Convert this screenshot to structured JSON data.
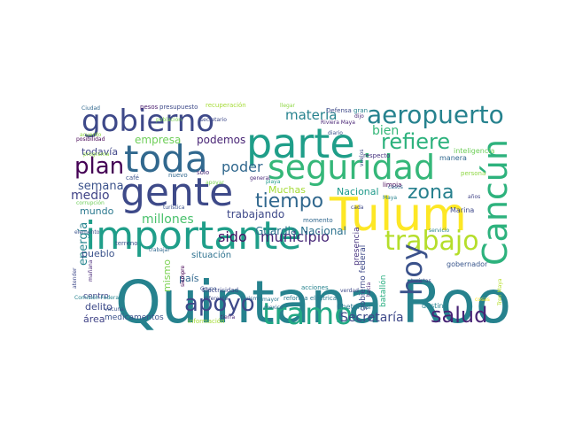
{
  "cloud": {
    "words": [
      {
        "text": "Quintana Roo",
        "color": "#26828e"
      },
      {
        "text": "gente",
        "color": "#3e4a89"
      },
      {
        "text": "importante",
        "color": "#1f9e89"
      },
      {
        "text": "Tulum",
        "color": "#fde725"
      },
      {
        "text": "toda",
        "color": "#31688e"
      },
      {
        "text": "parte",
        "color": "#1f9e89"
      },
      {
        "text": "gobierno",
        "color": "#3e4989"
      },
      {
        "text": "seguridad",
        "color": "#35b779"
      },
      {
        "text": "Cancún",
        "color": "#2db27d"
      },
      {
        "text": "aeropuerto",
        "color": "#26828e"
      },
      {
        "text": "tramo",
        "color": "#22a884"
      },
      {
        "text": "trabajo",
        "color": "#b5de2b"
      },
      {
        "text": "hoy",
        "color": "#3b528b"
      },
      {
        "text": "apoyo",
        "color": "#3e4989"
      },
      {
        "text": "salud",
        "color": "#482475"
      },
      {
        "text": "plan",
        "color": "#440154"
      },
      {
        "text": "tiempo",
        "color": "#31688e"
      },
      {
        "text": "refiere",
        "color": "#2db27d"
      },
      {
        "text": "zona",
        "color": "#27808e"
      },
      {
        "text": "municipio",
        "color": "#482878"
      },
      {
        "text": "Secretaría",
        "color": "#3e4989"
      },
      {
        "text": "sido",
        "color": "#471164"
      },
      {
        "text": "poder",
        "color": "#31688e"
      },
      {
        "text": "materia",
        "color": "#26828e"
      },
      {
        "text": "bien",
        "color": "#35b779"
      },
      {
        "text": "semana",
        "color": "#3b528b"
      },
      {
        "text": "millones",
        "color": "#4ac16d"
      },
      {
        "text": "energía",
        "color": "#25858e"
      },
      {
        "text": "medio",
        "color": "#414487"
      },
      {
        "text": "Guardia Nacional",
        "color": "#2c728e"
      },
      {
        "text": "trabajando",
        "color": "#3e4989"
      },
      {
        "text": "empresa",
        "color": "#6ece58"
      },
      {
        "text": "podemos",
        "color": "#482475"
      },
      {
        "text": "todavía",
        "color": "#404688"
      },
      {
        "text": "mundo",
        "color": "#2a788e"
      },
      {
        "text": "Nacional",
        "color": "#1f9a8a"
      },
      {
        "text": "Muchas",
        "color": "#a5db36"
      },
      {
        "text": "pueblo",
        "color": "#3b528b"
      },
      {
        "text": "situación",
        "color": "#2c718e"
      },
      {
        "text": "delito",
        "color": "#3e4a89"
      },
      {
        "text": "área",
        "color": "#414487"
      },
      {
        "text": "mismo",
        "color": "#7ad151"
      },
      {
        "text": "país",
        "color": "#31688e"
      },
      {
        "text": "centro",
        "color": "#414487"
      },
      {
        "text": "medicamentos",
        "color": "#3b528b"
      },
      {
        "text": "presencia",
        "color": "#46327e"
      },
      {
        "text": "batallón",
        "color": "#28ae80"
      },
      {
        "text": "gobierno federal",
        "color": "#3e4989"
      },
      {
        "text": "Chetumal",
        "color": "#2a788e"
      },
      {
        "text": "destino",
        "color": "#26828e"
      },
      {
        "text": "Marina",
        "color": "#3e4989"
      },
      {
        "text": "gobernador",
        "color": "#39568c"
      },
      {
        "text": "inteligencia",
        "color": "#6ece58"
      },
      {
        "text": "manera",
        "color": "#31688e"
      },
      {
        "text": "persona",
        "color": "#8fd744"
      },
      {
        "text": "respecto",
        "color": "#46337f"
      },
      {
        "text": "limpia",
        "color": "#440154"
      },
      {
        "text": "Defensa",
        "color": "#3e4989"
      },
      {
        "text": "gran",
        "color": "#26828e"
      },
      {
        "text": "nuevo",
        "color": "#31688e"
      },
      {
        "text": "café",
        "color": "#3b528b"
      },
      {
        "text": "sólo",
        "color": "#482878"
      },
      {
        "text": "presupuesto",
        "color": "#3e4a89"
      },
      {
        "text": "pesos",
        "color": "#481a6c"
      },
      {
        "text": "Electricidad",
        "color": "#3e4989"
      },
      {
        "text": "terreno",
        "color": "#3b528b"
      },
      {
        "text": "momento",
        "color": "#31688e"
      },
      {
        "text": "reforma eléctrica",
        "color": "#2a788e"
      },
      {
        "text": "acciones",
        "color": "#26828e"
      },
      {
        "text": "turistas",
        "color": "#3e4989"
      },
      {
        "text": "tierra",
        "color": "#482475"
      },
      {
        "text": "playa",
        "color": "#1f9a8a"
      },
      {
        "text": "años",
        "color": "#414487"
      },
      {
        "text": "Ciudad",
        "color": "#31688e"
      },
      {
        "text": "posibilidad",
        "color": "#440154"
      },
      {
        "text": "elemento",
        "color": "#3b528b"
      },
      {
        "text": "información",
        "color": "#a5db36"
      },
      {
        "text": "diferente",
        "color": "#3e4989"
      },
      {
        "text": "turismo",
        "color": "#31688e"
      },
      {
        "text": "mayor",
        "color": "#2a788e"
      },
      {
        "text": "verdad",
        "color": "#3e4989"
      },
      {
        "text": "vacuna",
        "color": "#3b528b"
      },
      {
        "text": "Comisión Federal",
        "color": "#26828e"
      },
      {
        "text": "mañana",
        "color": "#482878"
      },
      {
        "text": "recuperación",
        "color": "#a5db36"
      },
      {
        "text": "Riviera Maya",
        "color": "#482475"
      },
      {
        "text": "llegar",
        "color": "#8fd744"
      },
      {
        "text": "secretario",
        "color": "#3e4989"
      },
      {
        "text": "población",
        "color": "#7ad151"
      },
      {
        "text": "Maya",
        "color": "#26828e"
      },
      {
        "text": "Tren Maya",
        "color": "#b5de2b"
      },
      {
        "text": "casos",
        "color": "#31688e"
      },
      {
        "text": "general",
        "color": "#482878"
      },
      {
        "text": "apoyar",
        "color": "#7ad151"
      },
      {
        "text": "corrupción",
        "color": "#6ece58"
      },
      {
        "text": "atender",
        "color": "#3e4989"
      },
      {
        "text": "siempre",
        "color": "#440154"
      },
      {
        "text": "Grupo",
        "color": "#3b528b"
      },
      {
        "text": "turística",
        "color": "#3b528b"
      },
      {
        "text": "trabajar",
        "color": "#31688e"
      },
      {
        "text": "programa",
        "color": "#8fd744"
      },
      {
        "text": "cada",
        "color": "#3e4989"
      },
      {
        "text": "diario",
        "color": "#3b528b"
      },
      {
        "text": "dijo",
        "color": "#482878"
      },
      {
        "text": "vuelos",
        "color": "#3e4989"
      },
      {
        "text": "hacia",
        "color": "#482475"
      },
      {
        "text": "servicio",
        "color": "#26828e"
      },
      {
        "text": "mexico",
        "color": "#31688e"
      },
      {
        "text": "cosas",
        "color": "#fde725"
      },
      {
        "text": "acuerdo",
        "color": "#8fd744"
      }
    ]
  }
}
